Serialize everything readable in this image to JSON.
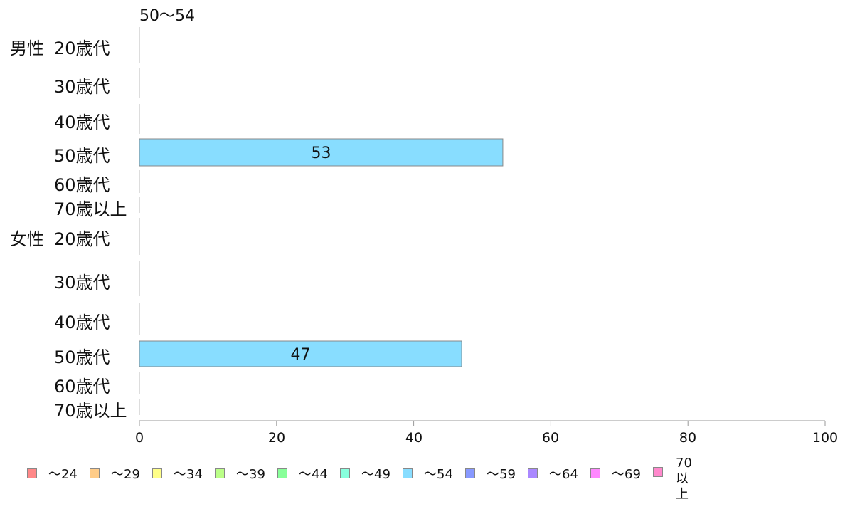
{
  "chart_data": {
    "type": "bar",
    "orientation": "horizontal",
    "stacked": true,
    "title": "50〜54",
    "groups": [
      {
        "label": "男性",
        "rows": [
          "20歳代",
          "30歳代",
          "40歳代",
          "50歳代",
          "60歳代",
          "70歳以上"
        ]
      },
      {
        "label": "女性",
        "rows": [
          "20歳代",
          "30歳代",
          "40歳代",
          "50歳代",
          "60歳代",
          "70歳以上"
        ]
      }
    ],
    "categories": [
      "男性 20歳代",
      "男性 30歳代",
      "男性 40歳代",
      "男性 50歳代",
      "男性 60歳代",
      "男性 70歳以上",
      "女性 20歳代",
      "女性 30歳代",
      "女性 40歳代",
      "女性 50歳代",
      "女性 60歳代",
      "女性 70歳以上"
    ],
    "series": [
      {
        "name": "〜24",
        "color": "#ff8888",
        "values": [
          0,
          0,
          0,
          0,
          0,
          0,
          0,
          0,
          0,
          0,
          0,
          0
        ]
      },
      {
        "name": "〜29",
        "color": "#ffcc88",
        "values": [
          0,
          0,
          0,
          0,
          0,
          0,
          0,
          0,
          0,
          0,
          0,
          0
        ]
      },
      {
        "name": "〜34",
        "color": "#ffff88",
        "values": [
          0,
          0,
          0,
          0,
          0,
          0,
          0,
          0,
          0,
          0,
          0,
          0
        ]
      },
      {
        "name": "〜39",
        "color": "#bbff88",
        "values": [
          0,
          0,
          0,
          0,
          0,
          0,
          0,
          0,
          0,
          0,
          0,
          0
        ]
      },
      {
        "name": "〜44",
        "color": "#88ff99",
        "values": [
          0,
          0,
          0,
          0,
          0,
          0,
          0,
          0,
          0,
          0,
          0,
          0
        ]
      },
      {
        "name": "〜49",
        "color": "#88ffdd",
        "values": [
          0,
          0,
          0,
          0,
          0,
          0,
          0,
          0,
          0,
          0,
          0,
          0
        ]
      },
      {
        "name": "〜54",
        "color": "#88ddff",
        "values": [
          0,
          0,
          0,
          53,
          0,
          0,
          0,
          0,
          0,
          47,
          0,
          0
        ]
      },
      {
        "name": "〜59",
        "color": "#8899ff",
        "values": [
          0,
          0,
          0,
          0,
          0,
          0,
          0,
          0,
          0,
          0,
          0,
          0
        ]
      },
      {
        "name": "〜64",
        "color": "#aa88ff",
        "values": [
          0,
          0,
          0,
          0,
          0,
          0,
          0,
          0,
          0,
          0,
          0,
          0
        ]
      },
      {
        "name": "〜69",
        "color": "#ff88ff",
        "values": [
          0,
          0,
          0,
          0,
          0,
          0,
          0,
          0,
          0,
          0,
          0,
          0
        ]
      },
      {
        "name": "70\n以上",
        "color": "#ff88cc",
        "values": [
          0,
          0,
          0,
          0,
          0,
          0,
          0,
          0,
          0,
          0,
          0,
          0
        ]
      }
    ],
    "xlim": [
      0,
      100
    ],
    "xticks": [
      0,
      20,
      40,
      60,
      80,
      100
    ],
    "grid": false,
    "legend_position": "bottom"
  }
}
